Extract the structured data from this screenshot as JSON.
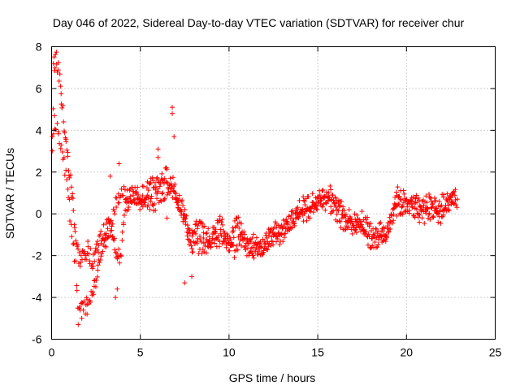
{
  "chart_data": {
    "type": "scatter",
    "title": "Day 046 of 2022, Sidereal Day-to-day VTEC variation (SDTVAR) for receiver chur",
    "xlabel": "GPS time / hours",
    "ylabel": "SDTVAR / TECUs",
    "xlim": [
      0,
      25
    ],
    "ylim": [
      -6,
      8
    ],
    "xticks": [
      0,
      5,
      10,
      15,
      20,
      25
    ],
    "yticks": [
      -6,
      -4,
      -2,
      0,
      2,
      4,
      6,
      8
    ],
    "xtick_labels": [
      "0",
      "5",
      "10",
      "15",
      "20",
      "25"
    ],
    "ytick_labels": [
      "-6",
      "-4",
      "-2",
      "0",
      "2",
      "4",
      "6",
      "8"
    ],
    "grid": true,
    "marker": "+",
    "series": [
      {
        "name": "SDTVAR",
        "color": "#ff0000",
        "trace_points": [
          [
            0.0,
            1.5
          ],
          [
            0.1,
            7.0
          ],
          [
            0.2,
            7.4
          ],
          [
            0.3,
            7.3
          ],
          [
            0.4,
            6.8
          ],
          [
            0.5,
            6.3
          ],
          [
            0.6,
            5.0
          ],
          [
            0.8,
            3.5
          ],
          [
            1.0,
            2.0
          ],
          [
            1.2,
            0.5
          ],
          [
            1.4,
            -1.5
          ],
          [
            1.6,
            -2.3
          ],
          [
            1.8,
            -2.0
          ],
          [
            2.0,
            -1.7
          ],
          [
            2.3,
            -2.2
          ],
          [
            2.6,
            -1.5
          ],
          [
            2.9,
            -1.0
          ],
          [
            3.2,
            -0.5
          ],
          [
            3.5,
            -1.0
          ],
          [
            3.7,
            -2.2
          ],
          [
            3.9,
            -2.0
          ],
          [
            4.2,
            0.5
          ],
          [
            4.6,
            1.0
          ],
          [
            5.0,
            0.8
          ],
          [
            5.5,
            1.2
          ],
          [
            6.0,
            1.5
          ],
          [
            6.5,
            1.8
          ],
          [
            6.9,
            1.0
          ],
          [
            7.3,
            0.5
          ],
          [
            7.6,
            -0.5
          ],
          [
            7.9,
            -1.8
          ],
          [
            8.2,
            -0.5
          ],
          [
            8.6,
            -1.0
          ],
          [
            9.0,
            -1.2
          ],
          [
            9.5,
            -0.5
          ],
          [
            10.0,
            -1.5
          ],
          [
            10.5,
            -0.3
          ],
          [
            11.0,
            -1.6
          ],
          [
            11.5,
            -1.8
          ],
          [
            12.0,
            -1.5
          ],
          [
            12.5,
            -0.8
          ],
          [
            13.0,
            -0.8
          ],
          [
            13.5,
            -0.3
          ],
          [
            14.0,
            0.3
          ],
          [
            14.5,
            0.5
          ],
          [
            15.0,
            0.6
          ],
          [
            15.5,
            1.0
          ],
          [
            16.0,
            0.8
          ],
          [
            16.5,
            0.0
          ],
          [
            17.0,
            -0.4
          ],
          [
            17.5,
            -0.3
          ],
          [
            18.0,
            -0.8
          ],
          [
            18.5,
            -0.7
          ],
          [
            19.0,
            -0.8
          ],
          [
            19.5,
            1.0
          ],
          [
            20.0,
            0.5
          ],
          [
            20.5,
            0.2
          ],
          [
            21.0,
            -0.3
          ],
          [
            21.5,
            0.3
          ],
          [
            22.0,
            0.5
          ],
          [
            22.5,
            0.6
          ],
          [
            22.9,
            0.7
          ]
        ],
        "secondary_points": [
          [
            0.0,
            3.0
          ],
          [
            0.15,
            4.5
          ],
          [
            0.3,
            4.2
          ],
          [
            0.5,
            3.5
          ],
          [
            0.7,
            2.5
          ],
          [
            0.9,
            1.5
          ],
          [
            1.1,
            -0.5
          ],
          [
            1.3,
            -2.0
          ],
          [
            1.5,
            -4.6
          ],
          [
            1.8,
            -4.5
          ],
          [
            2.1,
            -4.3
          ],
          [
            2.4,
            -3.5
          ],
          [
            2.7,
            -2.2
          ],
          [
            3.0,
            -1.5
          ],
          [
            3.3,
            -0.6
          ],
          [
            3.6,
            0.5
          ],
          [
            3.9,
            1.0
          ],
          [
            4.5,
            0.8
          ],
          [
            5.2,
            0.5
          ],
          [
            5.8,
            0.5
          ],
          [
            6.3,
            1.0
          ],
          [
            6.8,
            1.5
          ],
          [
            7.8,
            -1.0
          ],
          [
            8.3,
            -1.5
          ],
          [
            8.8,
            -1.5
          ],
          [
            9.3,
            -1.2
          ],
          [
            9.8,
            -1.3
          ],
          [
            10.3,
            -1.7
          ],
          [
            10.8,
            -1.2
          ],
          [
            11.3,
            -1.3
          ],
          [
            11.8,
            -1.7
          ],
          [
            12.3,
            -1.2
          ],
          [
            12.8,
            -1.2
          ],
          [
            13.3,
            -0.6
          ],
          [
            13.8,
            -0.2
          ],
          [
            14.3,
            -0.1
          ],
          [
            14.8,
            0.3
          ],
          [
            15.3,
            0.5
          ],
          [
            15.8,
            0.4
          ],
          [
            16.3,
            -0.3
          ],
          [
            16.8,
            -0.6
          ],
          [
            17.3,
            -0.5
          ],
          [
            17.8,
            -1.2
          ],
          [
            18.3,
            -1.5
          ],
          [
            18.8,
            -1.3
          ],
          [
            19.3,
            0.2
          ],
          [
            19.8,
            0.3
          ],
          [
            20.3,
            0.8
          ],
          [
            20.8,
            0.4
          ],
          [
            21.3,
            0.6
          ],
          [
            21.8,
            -0.2
          ],
          [
            22.3,
            0.3
          ],
          [
            22.8,
            1.0
          ]
        ],
        "outliers": [
          [
            1.5,
            -5.3
          ],
          [
            1.7,
            -5.0
          ],
          [
            2.0,
            -4.8
          ],
          [
            3.6,
            -4.0
          ],
          [
            3.7,
            -3.6
          ],
          [
            6.8,
            5.1
          ],
          [
            6.8,
            4.8
          ],
          [
            6.9,
            3.7
          ],
          [
            6.0,
            3.1
          ],
          [
            7.5,
            -3.3
          ],
          [
            7.9,
            -3.0
          ],
          [
            3.8,
            2.4
          ],
          [
            3.3,
            1.8
          ],
          [
            2.4,
            -3.2
          ],
          [
            2.6,
            -2.7
          ],
          [
            6.5,
            -0.2
          ],
          [
            6.0,
            2.7
          ]
        ]
      }
    ]
  }
}
